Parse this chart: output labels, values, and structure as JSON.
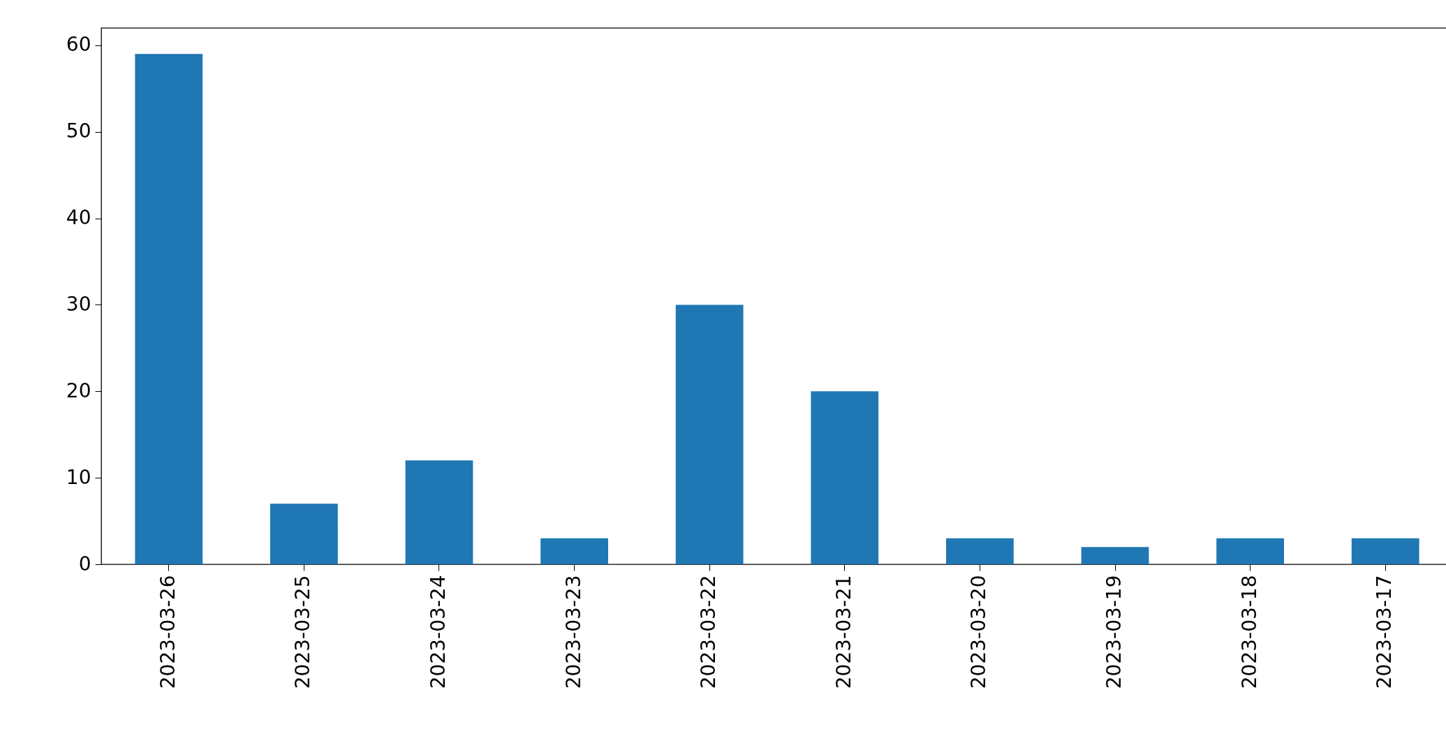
{
  "chart_data": {
    "type": "bar",
    "categories": [
      "2023-03-26",
      "2023-03-25",
      "2023-03-24",
      "2023-03-23",
      "2023-03-22",
      "2023-03-21",
      "2023-03-20",
      "2023-03-19",
      "2023-03-18",
      "2023-03-17"
    ],
    "values": [
      59,
      7,
      12,
      3,
      30,
      20,
      3,
      2,
      3,
      3
    ],
    "color": "#1f77b4",
    "ylim": [
      0,
      62
    ],
    "yticks": [
      0,
      10,
      20,
      30,
      40,
      50,
      60
    ]
  }
}
